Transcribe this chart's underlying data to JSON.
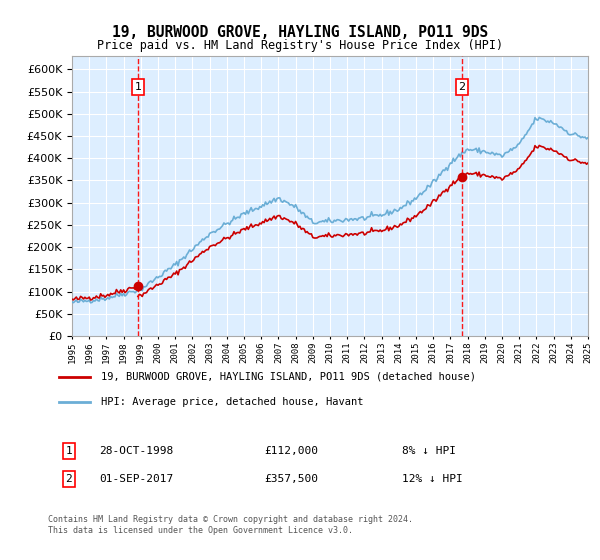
{
  "title": "19, BURWOOD GROVE, HAYLING ISLAND, PO11 9DS",
  "subtitle": "Price paid vs. HM Land Registry's House Price Index (HPI)",
  "ylabel_ticks": [
    0,
    50000,
    100000,
    150000,
    200000,
    250000,
    300000,
    350000,
    400000,
    450000,
    500000,
    550000,
    600000
  ],
  "x_start_year": 1995,
  "x_end_year": 2025,
  "sale1_date": "28-OCT-1998",
  "sale1_price": 112000,
  "sale1_hpi_diff": "8% ↓ HPI",
  "sale1_x": 1998.83,
  "sale2_date": "01-SEP-2017",
  "sale2_price": 357500,
  "sale2_hpi_diff": "12% ↓ HPI",
  "sale2_x": 2017.67,
  "hpi_line_color": "#6baed6",
  "sale_line_color": "#cc0000",
  "background_color": "#ddeeff",
  "legend_label_sale": "19, BURWOOD GROVE, HAYLING ISLAND, PO11 9DS (detached house)",
  "legend_label_hpi": "HPI: Average price, detached house, Havant",
  "footnote": "Contains HM Land Registry data © Crown copyright and database right 2024.\nThis data is licensed under the Open Government Licence v3.0."
}
